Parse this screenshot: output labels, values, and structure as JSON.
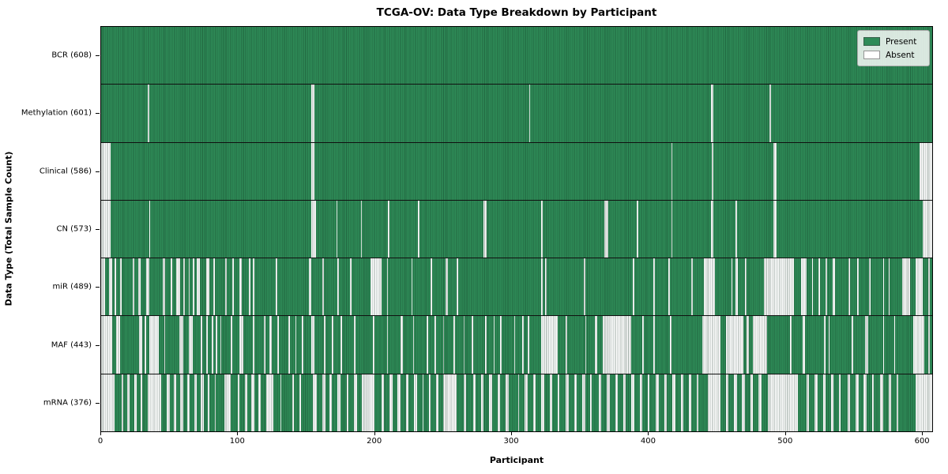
{
  "chart_data": {
    "type": "heatmap",
    "title": "TCGA-OV: Data Type Breakdown by Participant",
    "xlabel": "Participant",
    "ylabel": "Data Type (Total Sample Count)",
    "x_range": [
      0,
      608
    ],
    "x_ticks": [
      0,
      100,
      200,
      300,
      400,
      500,
      600
    ],
    "grid": false,
    "legend_position": "upper right",
    "legend": {
      "present": "Present",
      "absent": "Absent"
    },
    "colors": {
      "present": "#2e8b57",
      "absent": "#ffffff",
      "bar_edge": "#0c2c1c"
    },
    "rows": [
      {
        "name": "bcr",
        "label": "BCR (608)",
        "data_type": "BCR",
        "present_count": 608,
        "absent_ranges": []
      },
      {
        "name": "methylation",
        "label": "Methylation (601)",
        "data_type": "Methylation",
        "present_count": 601,
        "absent_ranges": [
          [
            34,
            35
          ],
          [
            154,
            156
          ],
          [
            313,
            314
          ],
          [
            446,
            448
          ],
          [
            489,
            490
          ]
        ]
      },
      {
        "name": "clinical",
        "label": "Clinical (586)",
        "data_type": "Clinical",
        "present_count": 586,
        "absent_ranges": [
          [
            0,
            7
          ],
          [
            154,
            156
          ],
          [
            417,
            418
          ],
          [
            447,
            448
          ],
          [
            492,
            494
          ],
          [
            599,
            608
          ]
        ]
      },
      {
        "name": "cn",
        "label": "CN (573)",
        "data_type": "CN",
        "present_count": 573,
        "absent_ranges": [
          [
            0,
            7
          ],
          [
            35,
            36
          ],
          [
            154,
            157
          ],
          [
            172,
            173
          ],
          [
            190,
            191
          ],
          [
            210,
            211
          ],
          [
            232,
            233
          ],
          [
            280,
            282
          ],
          [
            322,
            323
          ],
          [
            368,
            371
          ],
          [
            392,
            393
          ],
          [
            417,
            418
          ],
          [
            446,
            448
          ],
          [
            464,
            465
          ],
          [
            492,
            494
          ],
          [
            601,
            608
          ]
        ]
      },
      {
        "name": "mir",
        "label": "miR (489)",
        "data_type": "miR",
        "present_count": 489,
        "absent_ranges": [
          [
            0,
            3
          ],
          [
            6,
            8
          ],
          [
            10,
            11
          ],
          [
            14,
            15
          ],
          [
            23,
            24
          ],
          [
            27,
            29
          ],
          [
            33,
            35
          ],
          [
            45,
            47
          ],
          [
            51,
            52
          ],
          [
            55,
            58
          ],
          [
            60,
            61
          ],
          [
            64,
            65
          ],
          [
            67,
            68
          ],
          [
            70,
            72
          ],
          [
            77,
            79
          ],
          [
            82,
            83
          ],
          [
            91,
            92
          ],
          [
            96,
            97
          ],
          [
            101,
            103
          ],
          [
            108,
            109
          ],
          [
            111,
            112
          ],
          [
            128,
            129
          ],
          [
            152,
            154
          ],
          [
            162,
            163
          ],
          [
            173,
            174
          ],
          [
            182,
            183
          ],
          [
            197,
            205
          ],
          [
            209,
            210
          ],
          [
            227,
            228
          ],
          [
            241,
            242
          ],
          [
            252,
            254
          ],
          [
            260,
            261
          ],
          [
            322,
            323
          ],
          [
            325,
            326
          ],
          [
            353,
            354
          ],
          [
            389,
            390
          ],
          [
            404,
            405
          ],
          [
            415,
            416
          ],
          [
            432,
            433
          ],
          [
            441,
            449
          ],
          [
            461,
            462
          ],
          [
            464,
            466
          ],
          [
            471,
            472
          ],
          [
            485,
            507
          ],
          [
            512,
            516
          ],
          [
            520,
            521
          ],
          [
            525,
            526
          ],
          [
            530,
            531
          ],
          [
            535,
            537
          ],
          [
            547,
            548
          ],
          [
            553,
            554
          ],
          [
            562,
            563
          ],
          [
            572,
            573
          ],
          [
            576,
            577
          ],
          [
            586,
            592
          ],
          [
            596,
            601
          ],
          [
            605,
            606
          ]
        ]
      },
      {
        "name": "maf",
        "label": "MAF (443)",
        "data_type": "MAF",
        "present_count": 443,
        "absent_ranges": [
          [
            0,
            8
          ],
          [
            11,
            14
          ],
          [
            28,
            30
          ],
          [
            32,
            33
          ],
          [
            35,
            42
          ],
          [
            46,
            47
          ],
          [
            57,
            60
          ],
          [
            64,
            67
          ],
          [
            73,
            74
          ],
          [
            77,
            78
          ],
          [
            81,
            82
          ],
          [
            84,
            85
          ],
          [
            87,
            88
          ],
          [
            95,
            96
          ],
          [
            101,
            104
          ],
          [
            111,
            112
          ],
          [
            119,
            120
          ],
          [
            123,
            125
          ],
          [
            129,
            130
          ],
          [
            137,
            138
          ],
          [
            142,
            143
          ],
          [
            147,
            148
          ],
          [
            154,
            156
          ],
          [
            163,
            164
          ],
          [
            169,
            170
          ],
          [
            175,
            176
          ],
          [
            185,
            186
          ],
          [
            199,
            200
          ],
          [
            209,
            210
          ],
          [
            219,
            221
          ],
          [
            228,
            229
          ],
          [
            238,
            239
          ],
          [
            244,
            245
          ],
          [
            250,
            251
          ],
          [
            258,
            259
          ],
          [
            265,
            266
          ],
          [
            271,
            272
          ],
          [
            281,
            282
          ],
          [
            287,
            288
          ],
          [
            292,
            293
          ],
          [
            302,
            303
          ],
          [
            308,
            309
          ],
          [
            312,
            313
          ],
          [
            322,
            334
          ],
          [
            340,
            341
          ],
          [
            354,
            355
          ],
          [
            361,
            363
          ],
          [
            367,
            388
          ],
          [
            396,
            397
          ],
          [
            404,
            405
          ],
          [
            416,
            417
          ],
          [
            440,
            453
          ],
          [
            457,
            470
          ],
          [
            472,
            474
          ],
          [
            477,
            487
          ],
          [
            504,
            505
          ],
          [
            513,
            515
          ],
          [
            529,
            530
          ],
          [
            532,
            533
          ],
          [
            549,
            550
          ],
          [
            559,
            561
          ],
          [
            572,
            573
          ],
          [
            580,
            581
          ],
          [
            594,
            602
          ],
          [
            605,
            606
          ]
        ]
      },
      {
        "name": "mrna",
        "label": "mRNA (376)",
        "data_type": "mRNA",
        "present_count": 376,
        "absent_ranges": [
          [
            0,
            10
          ],
          [
            15,
            16
          ],
          [
            19,
            21
          ],
          [
            24,
            26
          ],
          [
            29,
            30
          ],
          [
            34,
            44
          ],
          [
            48,
            50
          ],
          [
            53,
            55
          ],
          [
            58,
            60
          ],
          [
            63,
            65
          ],
          [
            68,
            70
          ],
          [
            73,
            75
          ],
          [
            78,
            79
          ],
          [
            83,
            84
          ],
          [
            90,
            95
          ],
          [
            100,
            101
          ],
          [
            105,
            107
          ],
          [
            110,
            112
          ],
          [
            115,
            117
          ],
          [
            121,
            126
          ],
          [
            131,
            132
          ],
          [
            140,
            141
          ],
          [
            145,
            146
          ],
          [
            155,
            158
          ],
          [
            162,
            164
          ],
          [
            167,
            169
          ],
          [
            173,
            175
          ],
          [
            180,
            181
          ],
          [
            185,
            187
          ],
          [
            191,
            200
          ],
          [
            205,
            207
          ],
          [
            211,
            213
          ],
          [
            217,
            219
          ],
          [
            223,
            225
          ],
          [
            229,
            231
          ],
          [
            235,
            236
          ],
          [
            240,
            241
          ],
          [
            245,
            247
          ],
          [
            250,
            260
          ],
          [
            265,
            267
          ],
          [
            272,
            274
          ],
          [
            278,
            280
          ],
          [
            284,
            286
          ],
          [
            290,
            292
          ],
          [
            296,
            298
          ],
          [
            305,
            306
          ],
          [
            310,
            312
          ],
          [
            316,
            318
          ],
          [
            322,
            324
          ],
          [
            328,
            330
          ],
          [
            334,
            335
          ],
          [
            340,
            342
          ],
          [
            346,
            348
          ],
          [
            352,
            354
          ],
          [
            358,
            359
          ],
          [
            364,
            366
          ],
          [
            370,
            372
          ],
          [
            376,
            378
          ],
          [
            382,
            384
          ],
          [
            388,
            390
          ],
          [
            394,
            396
          ],
          [
            400,
            401
          ],
          [
            406,
            408
          ],
          [
            412,
            414
          ],
          [
            418,
            420
          ],
          [
            424,
            426
          ],
          [
            430,
            432
          ],
          [
            436,
            437
          ],
          [
            444,
            453
          ],
          [
            457,
            459
          ],
          [
            463,
            465
          ],
          [
            469,
            471
          ],
          [
            475,
            477
          ],
          [
            481,
            483
          ],
          [
            488,
            510
          ],
          [
            516,
            518
          ],
          [
            522,
            524
          ],
          [
            528,
            530
          ],
          [
            534,
            536
          ],
          [
            540,
            541
          ],
          [
            546,
            548
          ],
          [
            552,
            554
          ],
          [
            558,
            560
          ],
          [
            564,
            565
          ],
          [
            570,
            572
          ],
          [
            576,
            578
          ],
          [
            582,
            583
          ],
          [
            596,
            608
          ]
        ]
      }
    ]
  }
}
